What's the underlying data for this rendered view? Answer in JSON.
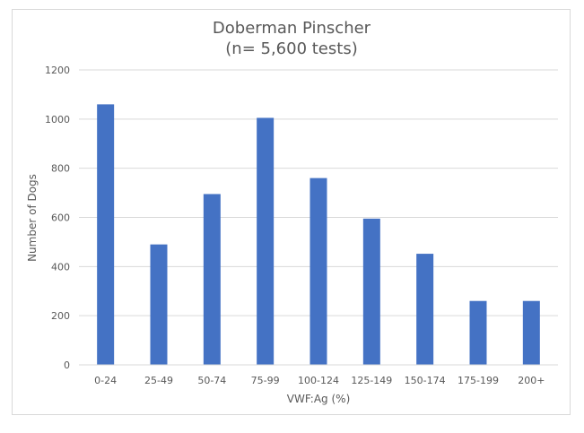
{
  "chart_data": {
    "type": "bar",
    "title": "Doberman Pinscher",
    "subtitle": "(n= 5,600 tests)",
    "xlabel": "VWF:Ag (%)",
    "ylabel": "Number of Dogs",
    "categories": [
      "0-24",
      "25-49",
      "50-74",
      "75-99",
      "100-124",
      "125-149",
      "150-174",
      "175-199",
      "200+"
    ],
    "values": [
      1060,
      490,
      695,
      1005,
      760,
      595,
      452,
      260,
      260
    ],
    "ylim": [
      0,
      1200
    ],
    "yticks": [
      0,
      200,
      400,
      600,
      800,
      1000,
      1200
    ],
    "grid": true,
    "legend": "none",
    "bar_color": "#4472c4"
  }
}
